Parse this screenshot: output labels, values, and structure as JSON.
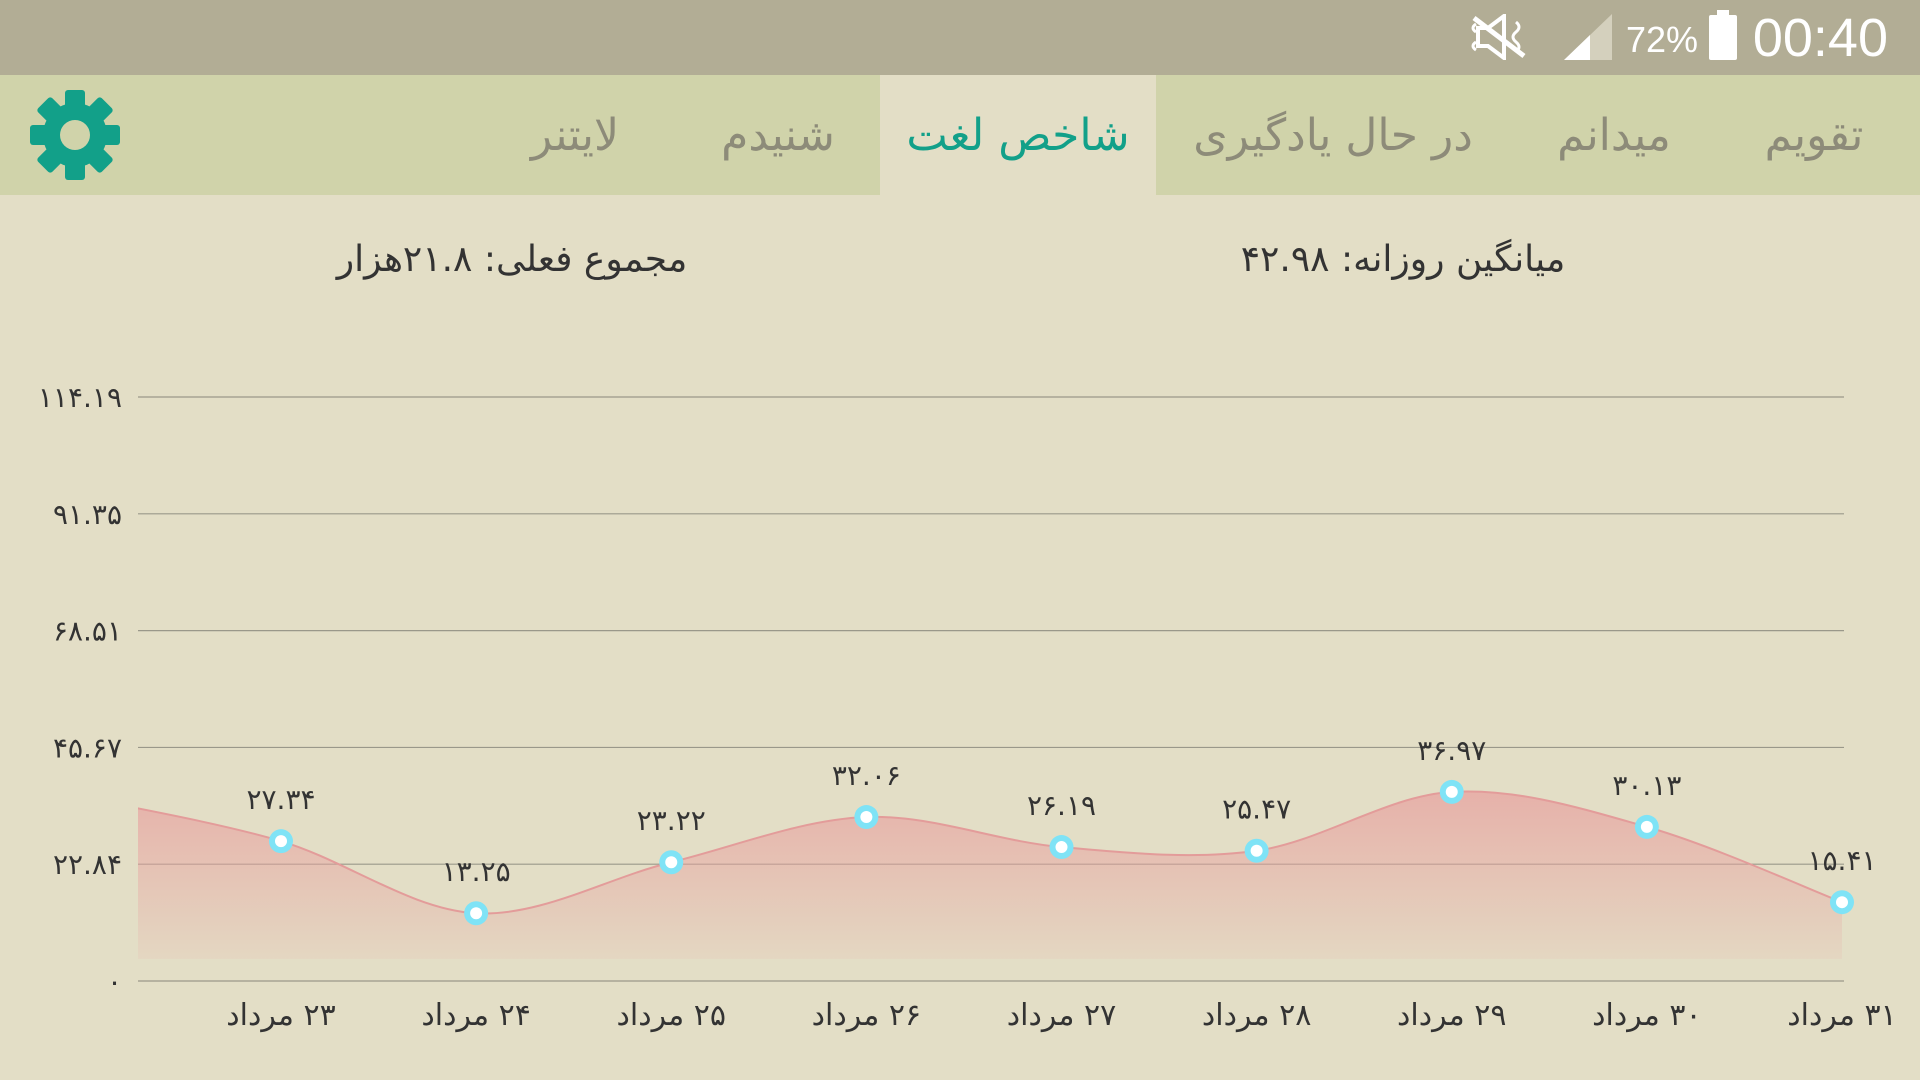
{
  "status_bar": {
    "time": "00:40",
    "battery_percent": "72%",
    "icons": [
      "mute-icon",
      "signal-icon",
      "battery-icon"
    ]
  },
  "tabs": [
    {
      "label": "تقویم",
      "active": false
    },
    {
      "label": "میدانم",
      "active": false
    },
    {
      "label": "در حال یادگیری",
      "active": false
    },
    {
      "label": "شاخص لغت",
      "active": true
    },
    {
      "label": "شنیدم",
      "active": false
    },
    {
      "label": "لایتنر",
      "active": false
    }
  ],
  "settings_icon": "gear-icon",
  "colors": {
    "accent": "#12a089",
    "status_bar": "#b2ad95",
    "tab_bar": "#d0d3aa",
    "background": "#e3dec6",
    "area_fill": "#e8a2a0",
    "point": "#7fe3f6"
  },
  "summary": {
    "daily_average": "میانگین روزانه: ۴۲.۹۸",
    "current_total": "مجموع فعلی: ۲۱.۸هزار"
  },
  "chart_data": {
    "type": "area",
    "categories": [
      "۲۳ مرداد",
      "۲۴ مرداد",
      "۲۵ مرداد",
      "۲۶ مرداد",
      "۲۷ مرداد",
      "۲۸ مرداد",
      "۲۹ مرداد",
      "۳۰ مرداد",
      "۳۱ مرداد"
    ],
    "series": [
      {
        "values": [
          27.34,
          13.25,
          23.22,
          32.06,
          26.19,
          25.47,
          36.97,
          30.13,
          15.41
        ],
        "labels": [
          "۲۷.۳۴",
          "۱۳.۲۵",
          "۲۳.۲۲",
          "۳۲.۰۶",
          "۲۶.۱۹",
          "۲۵.۴۷",
          "۳۶.۹۷",
          "۳۰.۱۳",
          "۱۵.۴۱"
        ]
      }
    ],
    "y_ticks": [
      0,
      22.84,
      45.67,
      68.51,
      91.35,
      114.19
    ],
    "y_tick_labels": [
      "۰",
      "۲۲.۸۴",
      "۴۵.۶۷",
      "۶۸.۵۱",
      "۹۱.۳۵",
      "۱۱۴.۱۹"
    ],
    "ylim": [
      0,
      114.19
    ],
    "grid": true,
    "xlabel": "",
    "ylabel": ""
  }
}
